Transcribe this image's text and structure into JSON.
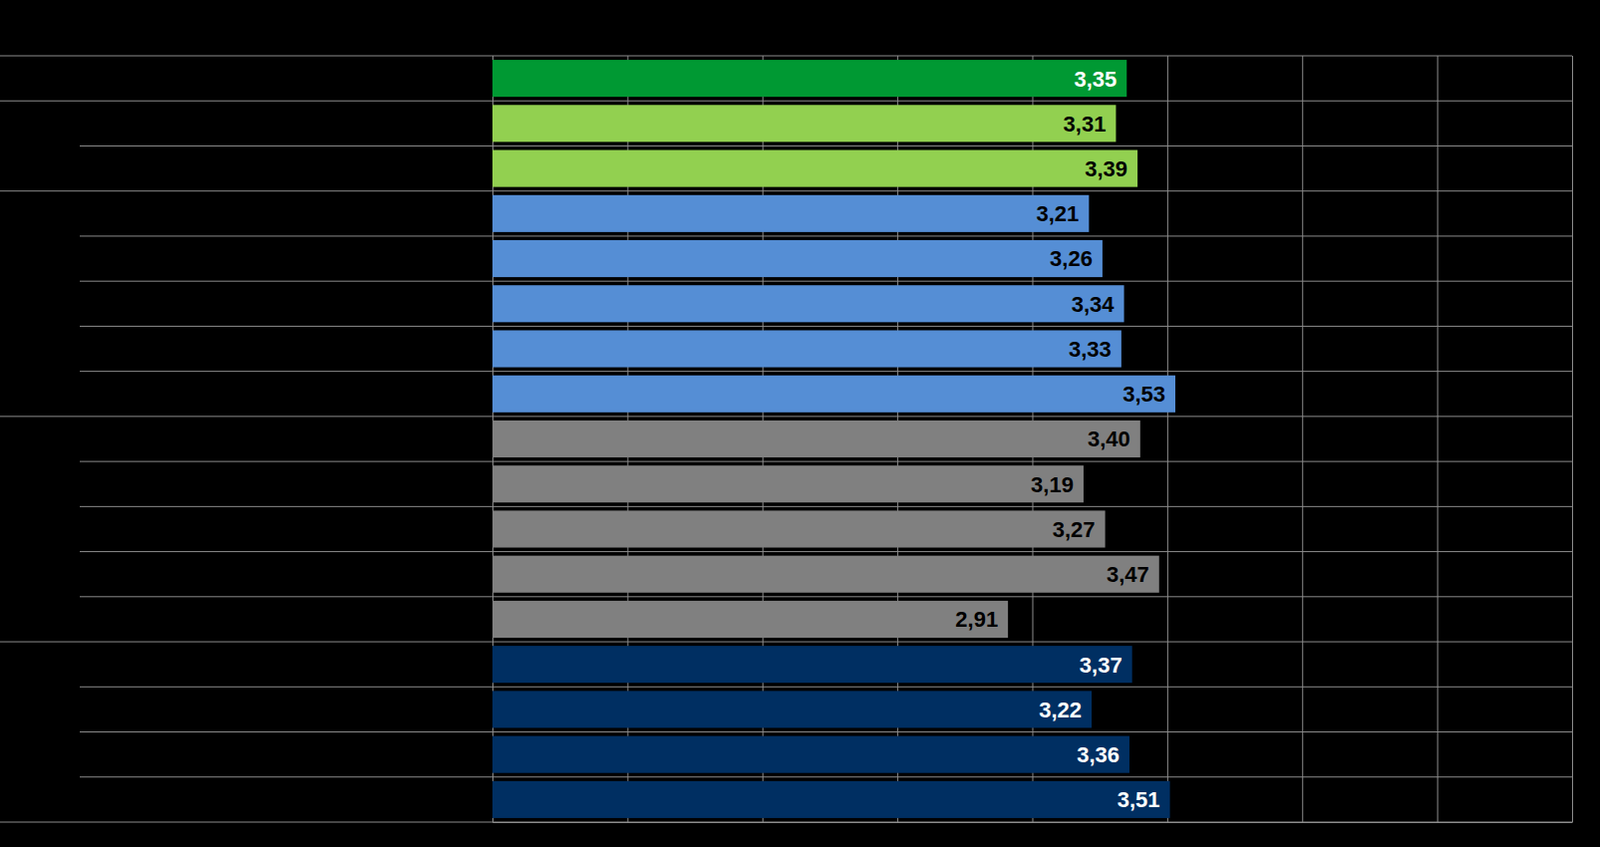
{
  "chart_data": {
    "type": "bar",
    "orientation": "horizontal",
    "categories": [
      null,
      null,
      null,
      null,
      null,
      null,
      null,
      null,
      null,
      null,
      null,
      null,
      null,
      null,
      null,
      null,
      null
    ],
    "values": [
      3.35,
      3.31,
      3.39,
      3.21,
      3.26,
      3.34,
      3.33,
      3.53,
      3.4,
      3.19,
      3.27,
      3.47,
      2.91,
      3.37,
      3.22,
      3.36,
      3.51
    ],
    "value_labels": [
      "3,35",
      "3,31",
      "3,39",
      "3,21",
      "3,26",
      "3,34",
      "3,33",
      "3,53",
      "3,40",
      "3,19",
      "3,27",
      "3,47",
      "2,91",
      "3,37",
      "3,22",
      "3,36",
      "3,51"
    ],
    "colors": [
      "#009933",
      "#92D050",
      "#92D050",
      "#558ED5",
      "#558ED5",
      "#558ED5",
      "#558ED5",
      "#558ED5",
      "#808080",
      "#808080",
      "#808080",
      "#808080",
      "#808080",
      "#002F62",
      "#002F62",
      "#002F62",
      "#002F62"
    ],
    "xlim": [
      1,
      5
    ],
    "xticks": [
      1,
      1.5,
      2,
      2.5,
      3,
      3.5,
      4,
      4.5,
      5
    ],
    "grid": true,
    "data_labels": true,
    "tick_labels": false
  }
}
